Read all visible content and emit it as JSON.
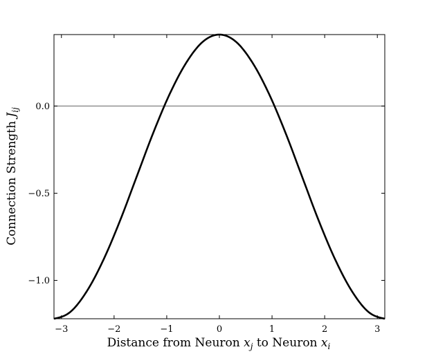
{
  "chart_data": {
    "type": "line",
    "title": "",
    "xlabel": "Distance from Neuron x_j to Neuron x_i",
    "ylabel": "Connection Strength J_ij",
    "xlim": [
      -3.1416,
      3.1416
    ],
    "ylim": [
      -1.22,
      0.41
    ],
    "grid": false,
    "x_ticks": [
      -3,
      -2,
      -1,
      0,
      1,
      2,
      3
    ],
    "x_tick_labels": [
      "−3",
      "−2",
      "−1",
      "0",
      "1",
      "2",
      "3"
    ],
    "y_ticks": [
      -1.0,
      -0.5,
      0.0
    ],
    "y_tick_labels": [
      "−1.0",
      "−0.5",
      "0.0"
    ],
    "reference_line": {
      "y": 0.0,
      "color": "#808080"
    },
    "series": [
      {
        "color": "#000000",
        "x": [
          -3.1416,
          -2.8274,
          -2.5133,
          -2.1991,
          -1.885,
          -1.5708,
          -1.2566,
          -0.9425,
          -0.6283,
          -0.3142,
          0.0,
          0.3142,
          0.6283,
          0.9425,
          1.2566,
          1.5708,
          1.885,
          2.1991,
          2.5133,
          2.8274,
          3.1416
        ],
        "y": [
          -1.22,
          -1.18,
          -1.06,
          -0.88,
          -0.656,
          -0.405,
          -0.154,
          0.07,
          0.249,
          0.369,
          0.41,
          0.369,
          0.249,
          0.07,
          -0.154,
          -0.405,
          -0.656,
          -0.88,
          -1.06,
          -1.18,
          -1.22
        ]
      }
    ]
  }
}
